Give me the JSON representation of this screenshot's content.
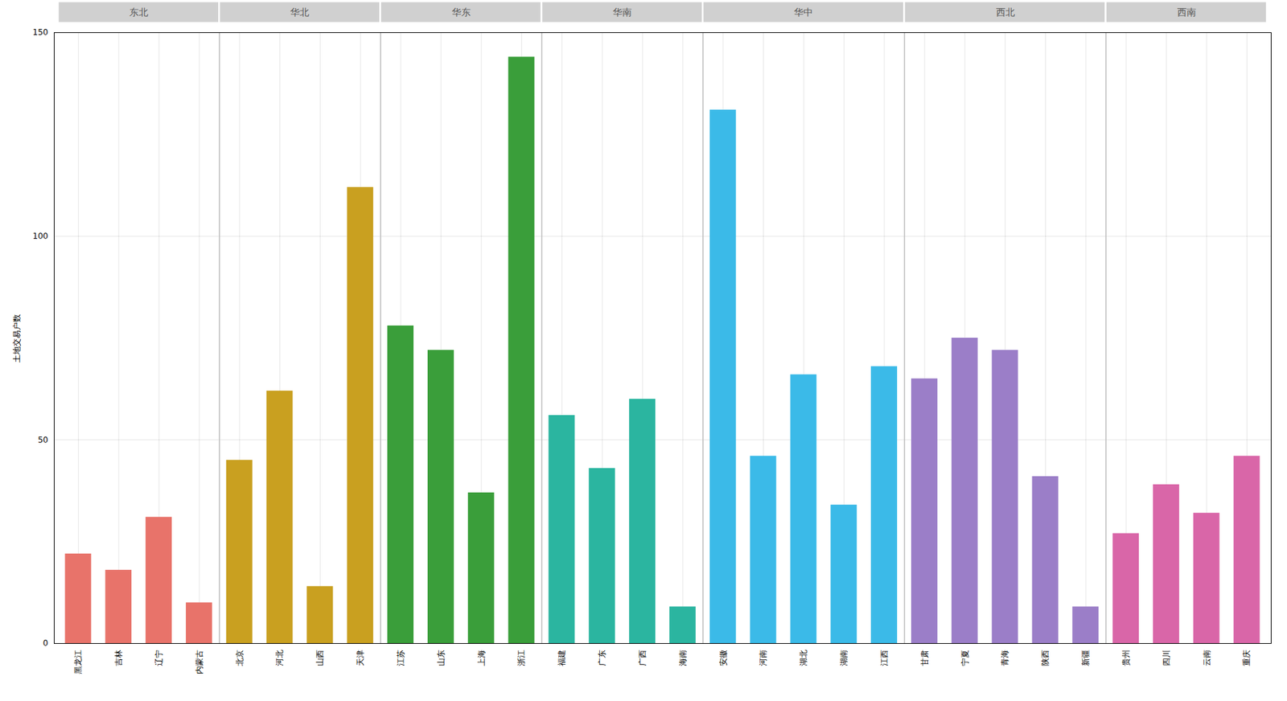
{
  "chart_data": {
    "type": "bar",
    "categories": [
      "黑龙江",
      "吉林",
      "辽宁",
      "内蒙古",
      "北京",
      "河北",
      "山西",
      "天津",
      "江苏",
      "山东",
      "上海",
      "浙江",
      "福建",
      "广东",
      "广西",
      "海南",
      "安徽",
      "河南",
      "湖北",
      "湖南",
      "江西",
      "甘肃",
      "宁夏",
      "青海",
      "陕西",
      "新疆",
      "贵州",
      "四川",
      "云南",
      "重庆"
    ],
    "values": [
      22,
      18,
      31,
      10,
      45,
      62,
      14,
      112,
      78,
      72,
      37,
      144,
      56,
      43,
      60,
      9,
      131,
      46,
      66,
      34,
      68,
      65,
      75,
      72,
      41,
      9,
      27,
      39,
      32,
      46
    ],
    "colors": [
      "#E8736A",
      "#E8736A",
      "#E8736A",
      "#E8736A",
      "#C9A020",
      "#C9A020",
      "#C9A020",
      "#C9A020",
      "#3A9E3A",
      "#3A9E3A",
      "#3A9E3A",
      "#3A9E3A",
      "#2BB5A0",
      "#2BB5A0",
      "#2BB5A0",
      "#2BB5A0",
      "#3BBAE8",
      "#3BBAE8",
      "#3BBAE8",
      "#3BBAE8",
      "#3BBAE8",
      "#9B7EC8",
      "#9B7EC8",
      "#9B7EC8",
      "#9B7EC8",
      "#9B7EC8",
      "#D966A8",
      "#D966A8",
      "#D966A8",
      "#D966A8"
    ],
    "groups": [
      "东北",
      "东北",
      "东北",
      "东北",
      "华北",
      "华北",
      "华北",
      "华北",
      "华东",
      "华东",
      "华东",
      "华东",
      "华南",
      "华南",
      "华南",
      "华南",
      "华中",
      "华中",
      "华中",
      "华中",
      "华中",
      "西北",
      "西北",
      "西北",
      "西北",
      "西北",
      "西南",
      "西南",
      "西南",
      "西南"
    ],
    "ylabel": "土地交易户数",
    "ylim": [
      0,
      150
    ],
    "yticks": [
      0,
      50,
      100,
      150
    ],
    "grid": true
  }
}
